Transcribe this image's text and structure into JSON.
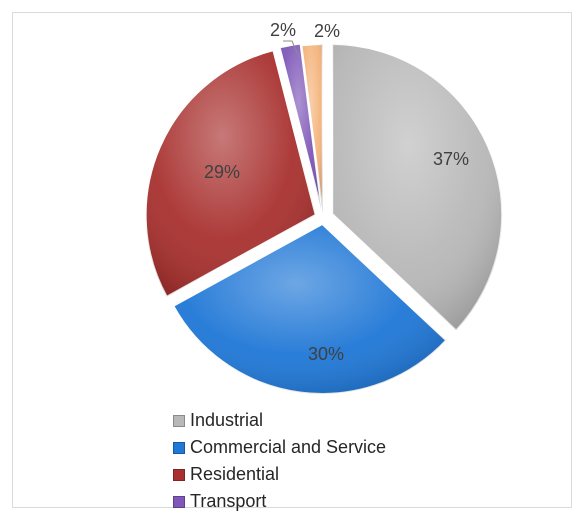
{
  "chart_data": {
    "type": "pie",
    "categories": [
      "Industrial",
      "Commercial and Service",
      "Residential",
      "Transport",
      ""
    ],
    "values": [
      37,
      30,
      29,
      2,
      2
    ],
    "data_labels": [
      "37%",
      "30%",
      "29%",
      "2%",
      "2%"
    ],
    "colors": [
      "#b8b8b8",
      "#1f77d6",
      "#a8312f",
      "#7e57b8",
      "#f4b47c"
    ],
    "legend_position": "bottom",
    "legend": [
      "Industrial",
      "Commercial and Service",
      "Residential",
      "Transport"
    ]
  }
}
